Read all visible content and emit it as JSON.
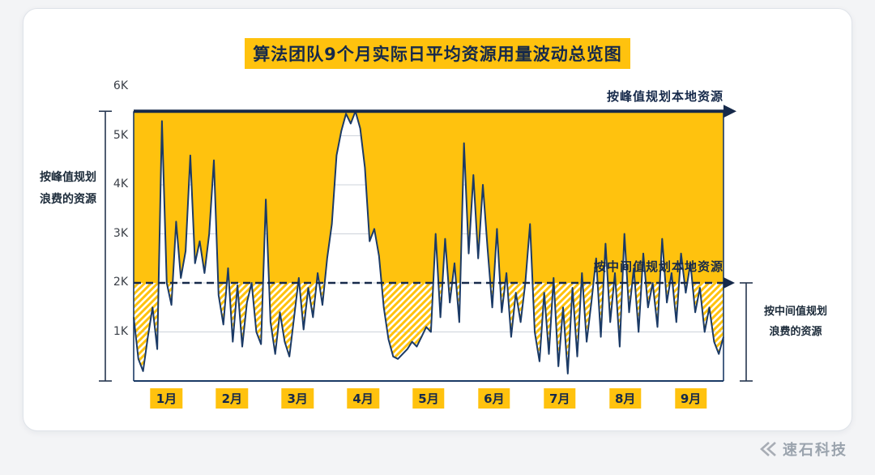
{
  "title": "算法团队9个月实际日平均资源用量波动总览图",
  "annotations": {
    "peak_line_label": "按峰值规划本地资源",
    "median_line_label": "按中间值规划本地资源",
    "left_bracket_line1": "按峰值规划",
    "left_bracket_line2": "浪费的资源",
    "right_bracket_line1": "按中间值规划",
    "right_bracket_line2": "浪费的资源"
  },
  "watermark": "速石科技",
  "chart_data": {
    "type": "area",
    "title": "算法团队9个月实际日平均资源用量波动总览图",
    "x_categories": [
      "1月",
      "2月",
      "3月",
      "4月",
      "5月",
      "6月",
      "7月",
      "8月",
      "9月"
    ],
    "y_ticks": [
      {
        "label": "1K",
        "value": 1
      },
      {
        "label": "2K",
        "value": 2
      },
      {
        "label": "3K",
        "value": 3
      },
      {
        "label": "4K",
        "value": 4
      },
      {
        "label": "5K",
        "value": 5
      },
      {
        "label": "6K",
        "value": 6
      }
    ],
    "ylim": [
      0,
      6
    ],
    "unit": "K",
    "peak_plan_level_k": 5.5,
    "median_plan_level_k": 2.0,
    "grid": true,
    "legend_position": "none",
    "series": [
      {
        "name": "实际日平均资源用量",
        "points_per_month": 14,
        "values_k": [
          1.3,
          0.45,
          0.2,
          0.9,
          1.5,
          0.65,
          5.3,
          2.0,
          1.55,
          3.25,
          2.1,
          2.65,
          4.6,
          2.4,
          2.85,
          2.2,
          3.0,
          4.5,
          1.75,
          1.15,
          2.3,
          0.8,
          1.95,
          0.7,
          1.6,
          2.0,
          1.0,
          0.75,
          3.7,
          1.2,
          0.55,
          1.4,
          0.8,
          0.5,
          1.3,
          2.1,
          1.05,
          1.9,
          1.3,
          2.2,
          1.55,
          2.5,
          3.2,
          4.6,
          5.1,
          5.45,
          5.25,
          5.5,
          5.15,
          4.35,
          2.85,
          3.1,
          2.55,
          1.5,
          0.85,
          0.5,
          0.45,
          0.55,
          0.65,
          0.8,
          0.7,
          0.9,
          1.1,
          1.0,
          3.0,
          1.3,
          2.9,
          1.6,
          2.4,
          1.2,
          4.85,
          2.6,
          4.2,
          2.5,
          4.0,
          2.7,
          1.5,
          3.1,
          1.4,
          2.2,
          0.9,
          1.8,
          1.2,
          2.0,
          3.2,
          1.0,
          0.4,
          1.8,
          0.55,
          2.1,
          0.3,
          1.5,
          0.15,
          1.9,
          0.5,
          2.2,
          0.8,
          1.6,
          2.5,
          0.9,
          2.8,
          1.2,
          2.2,
          0.7,
          3.0,
          1.4,
          2.3,
          1.0,
          2.6,
          1.5,
          2.0,
          1.1,
          2.9,
          1.6,
          2.2,
          1.2,
          2.6,
          1.8,
          2.4,
          1.4,
          1.9,
          1.0,
          1.5,
          0.8,
          0.55,
          0.9
        ]
      }
    ],
    "colors": {
      "fill": "#FFC20E",
      "line": "#1B3A66",
      "grid": "#CDD3DB",
      "axis_text": "#3A3F47",
      "annotation": "#16294A"
    }
  }
}
